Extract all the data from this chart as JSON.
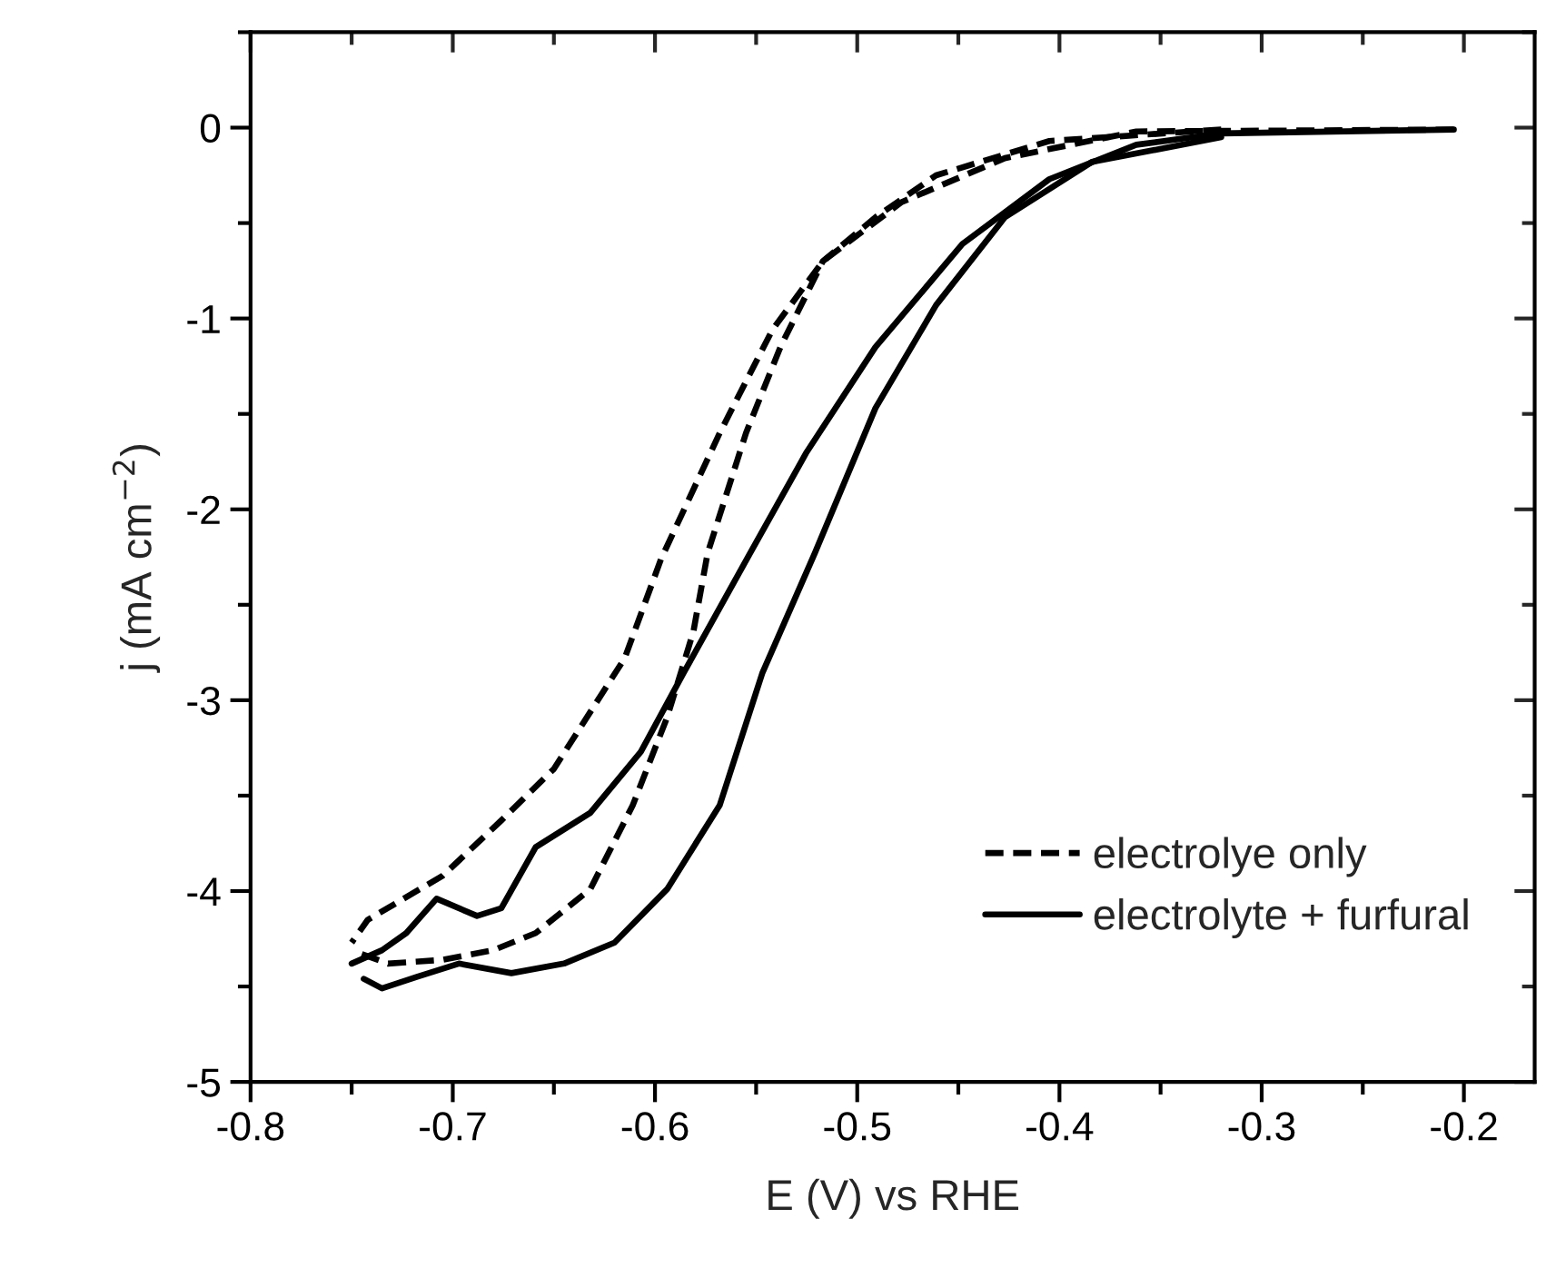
{
  "chart_data": {
    "type": "line",
    "xlabel": "E (V) vs RHE",
    "ylabel": "j (mA cm$^{−2}$)",
    "xlim": [
      -0.8,
      -0.165
    ],
    "ylim": [
      -5,
      0.5
    ],
    "xticks": [
      -0.8,
      -0.7,
      -0.6,
      -0.5,
      -0.4,
      -0.3,
      -0.2
    ],
    "yticks": [
      -5,
      -4,
      -3,
      -2,
      -1,
      0
    ],
    "legend": "bottom right",
    "grid": false,
    "series": [
      {
        "name": "electrolye only",
        "color": "#000000",
        "line_style": "dashed",
        "x": [
          -0.205,
          -0.362,
          -0.427,
          -0.478,
          -0.517,
          -0.542,
          -0.568,
          -0.597,
          -0.615,
          -0.65,
          -0.676,
          -0.705,
          -0.742,
          -0.75
        ],
        "values": [
          -0.01,
          -0.02,
          -0.16,
          -0.39,
          -0.7,
          -1.06,
          -1.6,
          -2.26,
          -2.78,
          -3.36,
          -3.63,
          -3.92,
          -4.15,
          -4.27
        ]
      },
      {
        "color": "#000000",
        "line_style": "dashed",
        "x": [
          -0.745,
          -0.732,
          -0.705,
          -0.68,
          -0.659,
          -0.632,
          -0.611,
          -0.594,
          -0.581,
          -0.574,
          -0.555,
          -0.538,
          -0.517,
          -0.491,
          -0.461,
          -0.405,
          -0.32
        ],
        "values": [
          -4.33,
          -4.38,
          -4.36,
          -4.31,
          -4.22,
          -3.99,
          -3.55,
          -3.09,
          -2.64,
          -2.23,
          -1.6,
          -1.15,
          -0.7,
          -0.47,
          -0.25,
          -0.07,
          -0.01
        ]
      },
      {
        "name": "electrolyte + furfural",
        "color": "#000000",
        "line_style": "solid",
        "x": [
          -0.205,
          -0.32,
          -0.362,
          -0.405,
          -0.448,
          -0.491,
          -0.525,
          -0.553,
          -0.586,
          -0.607,
          -0.632,
          -0.659,
          -0.676,
          -0.688,
          -0.708,
          -0.723,
          -0.735,
          -0.75
        ],
        "values": [
          -0.01,
          -0.03,
          -0.09,
          -0.27,
          -0.61,
          -1.15,
          -1.7,
          -2.23,
          -2.86,
          -3.27,
          -3.59,
          -3.77,
          -4.09,
          -4.13,
          -4.04,
          -4.22,
          -4.31,
          -4.38
        ]
      },
      {
        "color": "#000000",
        "line_style": "solid",
        "x": [
          -0.744,
          -0.735,
          -0.718,
          -0.697,
          -0.671,
          -0.645,
          -0.62,
          -0.594,
          -0.568,
          -0.547,
          -0.521,
          -0.491,
          -0.461,
          -0.427,
          -0.384,
          -0.32
        ],
        "values": [
          -4.46,
          -4.51,
          -4.45,
          -4.38,
          -4.43,
          -4.38,
          -4.27,
          -3.99,
          -3.55,
          -2.86,
          -2.23,
          -1.47,
          -0.93,
          -0.47,
          -0.18,
          -0.05
        ]
      }
    ]
  }
}
